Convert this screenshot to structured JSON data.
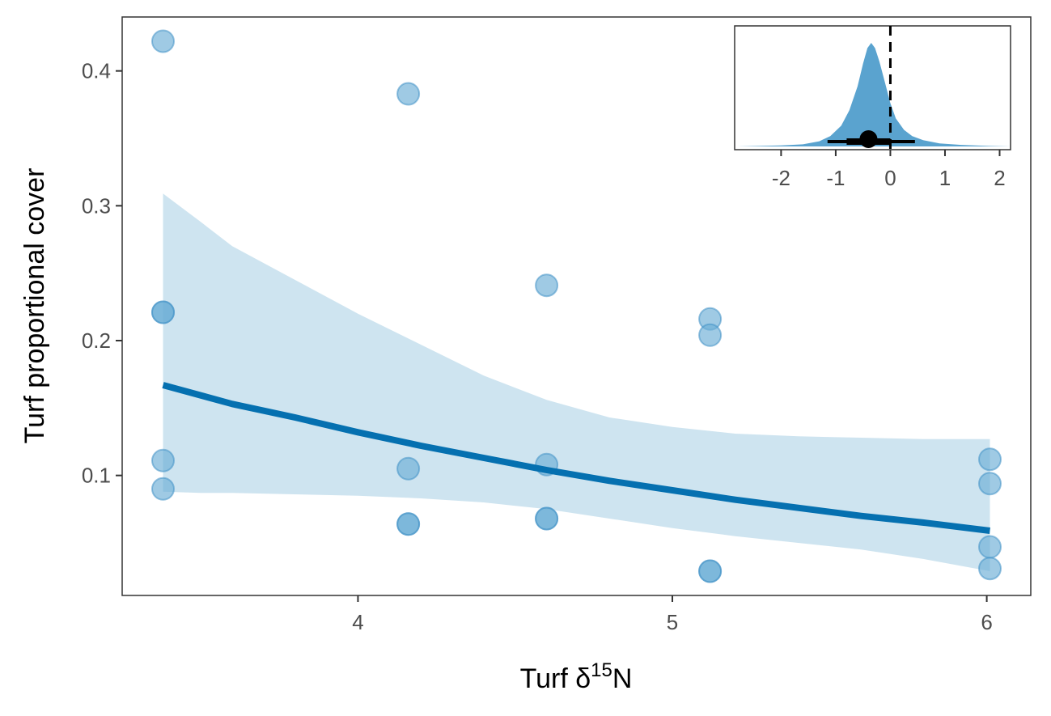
{
  "chart_data": {
    "type": "scatter",
    "xlabel": {
      "main": "Turf δ",
      "sup": "15",
      "tail": "N"
    },
    "ylabel": "Turf proportional cover",
    "xlim": [
      3.25,
      6.14
    ],
    "ylim": [
      0.011,
      0.44
    ],
    "xticks": [
      4,
      5,
      6
    ],
    "yticks": [
      0.1,
      0.2,
      0.3,
      0.4
    ],
    "xtick_labels": [
      "4",
      "5",
      "6"
    ],
    "ytick_labels": [
      "0.1",
      "0.2",
      "0.3",
      "0.4"
    ],
    "grid": false,
    "colors": {
      "points": "#6baed6",
      "point_edge": "#4292c6",
      "ribbon": "#9ecae1",
      "line": "#0570b0",
      "inset_density": "#5aa3cf",
      "frame": "#333333"
    },
    "points": [
      {
        "x": 3.38,
        "y": 0.422
      },
      {
        "x": 3.38,
        "y": 0.221
      },
      {
        "x": 3.38,
        "y": 0.221
      },
      {
        "x": 3.38,
        "y": 0.111
      },
      {
        "x": 3.38,
        "y": 0.09
      },
      {
        "x": 4.16,
        "y": 0.383
      },
      {
        "x": 4.16,
        "y": 0.105
      },
      {
        "x": 4.16,
        "y": 0.064
      },
      {
        "x": 4.16,
        "y": 0.064
      },
      {
        "x": 4.6,
        "y": 0.241
      },
      {
        "x": 4.6,
        "y": 0.108
      },
      {
        "x": 4.6,
        "y": 0.068
      },
      {
        "x": 4.6,
        "y": 0.068
      },
      {
        "x": 5.12,
        "y": 0.216
      },
      {
        "x": 5.12,
        "y": 0.204
      },
      {
        "x": 5.12,
        "y": 0.029
      },
      {
        "x": 5.12,
        "y": 0.029
      },
      {
        "x": 6.01,
        "y": 0.112
      },
      {
        "x": 6.01,
        "y": 0.094
      },
      {
        "x": 6.01,
        "y": 0.047
      },
      {
        "x": 6.01,
        "y": 0.031
      }
    ],
    "fit_line": {
      "x": [
        3.38,
        3.6,
        3.8,
        4.0,
        4.2,
        4.4,
        4.6,
        4.8,
        5.0,
        5.2,
        5.4,
        5.6,
        5.8,
        6.01
      ],
      "y": [
        0.167,
        0.153,
        0.143,
        0.132,
        0.122,
        0.113,
        0.104,
        0.096,
        0.089,
        0.082,
        0.076,
        0.07,
        0.065,
        0.059
      ]
    },
    "ribbon": {
      "x": [
        3.38,
        3.5,
        3.6,
        3.8,
        4.0,
        4.2,
        4.4,
        4.6,
        4.8,
        5.0,
        5.2,
        5.4,
        5.6,
        5.8,
        6.01
      ],
      "upper": [
        0.309,
        0.288,
        0.27,
        0.245,
        0.22,
        0.197,
        0.174,
        0.156,
        0.143,
        0.136,
        0.131,
        0.129,
        0.128,
        0.127,
        0.127
      ],
      "lower": [
        0.088,
        0.087,
        0.087,
        0.086,
        0.085,
        0.083,
        0.08,
        0.075,
        0.068,
        0.061,
        0.055,
        0.05,
        0.045,
        0.038,
        0.029
      ]
    },
    "inset": {
      "type": "area",
      "xlim": [
        -2.85,
        2.2
      ],
      "xticks": [
        -2,
        -1,
        0,
        1,
        2
      ],
      "xtick_labels": [
        "-2",
        "-1",
        "0",
        "1",
        "2"
      ],
      "density": {
        "x": [
          -2.8,
          -2.0,
          -1.6,
          -1.3,
          -1.1,
          -0.9,
          -0.75,
          -0.6,
          -0.5,
          -0.42,
          -0.35,
          -0.28,
          -0.2,
          -0.1,
          0.0,
          0.1,
          0.25,
          0.4,
          0.6,
          0.9,
          1.3,
          1.8,
          2.2
        ],
        "y": [
          0.0,
          0.01,
          0.02,
          0.05,
          0.1,
          0.2,
          0.35,
          0.58,
          0.8,
          0.95,
          1.0,
          0.95,
          0.82,
          0.62,
          0.42,
          0.27,
          0.16,
          0.1,
          0.06,
          0.03,
          0.015,
          0.005,
          0.0
        ]
      },
      "reference_line": 0,
      "point_estimate": -0.4,
      "interval_inner": [
        -0.8,
        0.0
      ],
      "interval_outer": [
        -1.15,
        0.45
      ]
    }
  }
}
